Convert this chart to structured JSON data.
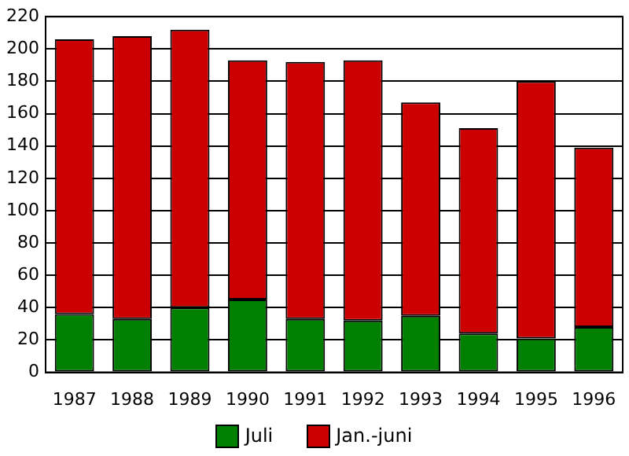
{
  "chart_data": {
    "type": "bar",
    "stacked": true,
    "categories": [
      "1987",
      "1988",
      "1989",
      "1990",
      "1991",
      "1992",
      "1993",
      "1994",
      "1995",
      "1996"
    ],
    "series": [
      {
        "name": "Juli",
        "color": "#008000",
        "values": [
          36,
          33,
          40,
          45,
          33,
          32,
          35,
          24,
          21,
          28
        ]
      },
      {
        "name": "Jan.-juni",
        "color": "#cc0000",
        "values": [
          170,
          175,
          172,
          148,
          159,
          161,
          132,
          127,
          159,
          111
        ]
      }
    ],
    "ylim": [
      0,
      220
    ],
    "yticks": [
      0,
      20,
      40,
      60,
      80,
      100,
      120,
      140,
      160,
      180,
      200,
      220
    ],
    "grid": "y",
    "legend": "bottom"
  }
}
